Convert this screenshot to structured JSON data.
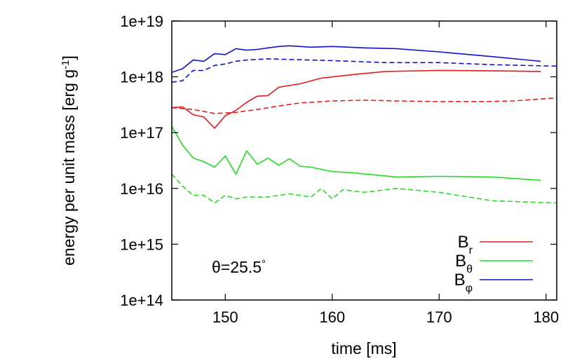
{
  "chart_data": {
    "type": "line",
    "xlabel": "time [ms]",
    "ylabel_main": "energy per unit mass [erg g",
    "ylabel_sup": "-1",
    "ylabel_close": "]",
    "xlim": [
      145,
      181
    ],
    "ylim": [
      100000000000000.0,
      1e+19
    ],
    "y_scale": "log",
    "x_ticks": [
      150,
      160,
      170,
      180
    ],
    "x_tick_labels": [
      "150",
      "160",
      "170",
      "180"
    ],
    "y_ticks": [
      100000000000000.0,
      1000000000000000.0,
      1e+16,
      1e+17,
      1e+18,
      1e+19
    ],
    "y_tick_labels": [
      "1e+14",
      "1e+15",
      "1e+16",
      "1e+17",
      "1e+18",
      "1e+19"
    ],
    "annotation": {
      "prefix": "θ",
      "text": "=25.5",
      "suffix": "°"
    },
    "legend_position": "bottom-right",
    "series": [
      {
        "base": "B",
        "sub": "r",
        "color": "#e41a1c",
        "style": "solid",
        "x": [
          145,
          146,
          147,
          148,
          149,
          150,
          151,
          152,
          153,
          154,
          155,
          157,
          159,
          162,
          165,
          170,
          175,
          179.5
        ],
        "y": [
          2.8e+17,
          2.9e+17,
          2.1e+17,
          1.9e+17,
          1.2e+17,
          2e+17,
          2.5e+17,
          3.5e+17,
          4.5e+17,
          4.6e+17,
          6.5e+17,
          7.5e+17,
          9.5e+17,
          1.1e+18,
          1.25e+18,
          1.3e+18,
          1.28e+18,
          1.25e+18
        ]
      },
      {
        "style": "dashed",
        "color": "#e41a1c",
        "x": [
          145,
          147,
          149,
          151,
          153,
          155,
          157,
          160,
          163,
          166,
          170,
          174,
          177,
          179.5,
          181
        ],
        "y": [
          2.8e+17,
          2.6e+17,
          2.2e+17,
          2.3e+17,
          2.6e+17,
          3e+17,
          3.4e+17,
          3.7e+17,
          3.8e+17,
          3.7e+17,
          3.6e+17,
          3.6e+17,
          3.7e+17,
          4e+17,
          4.2e+17
        ]
      },
      {
        "base": "B",
        "sub": "θ",
        "color": "#22dd22",
        "style": "solid",
        "x": [
          145,
          146,
          147,
          148,
          149,
          150,
          151,
          152,
          153,
          154,
          155,
          156,
          157,
          158,
          160,
          162,
          166,
          170,
          175,
          179.5
        ],
        "y": [
          1.3e+17,
          6e+16,
          3.5e+16,
          3e+16,
          2.4e+16,
          3.8e+16,
          1.8e+16,
          4.7e+16,
          2.7e+16,
          3.5e+16,
          2.6e+16,
          3.4e+16,
          2.5e+16,
          2.4e+16,
          2e+16,
          1.9e+16,
          1.6e+16,
          1.65e+16,
          1.6e+16,
          1.4e+16
        ]
      },
      {
        "style": "dashed",
        "color": "#22dd22",
        "x": [
          145,
          146,
          147,
          148,
          149,
          150,
          151,
          152,
          154,
          156,
          158,
          159,
          160,
          161,
          163,
          166,
          170,
          175,
          181
        ],
        "y": [
          1.8e+16,
          1.1e+16,
          7500000000000000.0,
          7500000000000000.0,
          5500000000000000.0,
          7500000000000000.0,
          6500000000000000.0,
          7000000000000000.0,
          7000000000000000.0,
          8000000000000000.0,
          7000000000000000.0,
          1e+16,
          6500000000000000.0,
          9500000000000000.0,
          8500000000000000.0,
          1e+16,
          8500000000000000.0,
          6000000000000000.0,
          5500000000000000.0
        ]
      },
      {
        "base": "B",
        "sub": "φ",
        "color": "#1010cc",
        "style": "solid",
        "x": [
          145,
          146,
          147,
          148,
          149,
          150,
          151,
          152,
          153,
          154,
          155,
          156,
          158,
          160,
          163,
          166,
          170,
          175,
          179.5
        ],
        "y": [
          1.2e+18,
          1.4e+18,
          2e+18,
          1.9e+18,
          2.6e+18,
          2.5e+18,
          3.2e+18,
          3e+18,
          3.1e+18,
          3.3e+18,
          3.5e+18,
          3.6e+18,
          3.4e+18,
          3.5e+18,
          3.3e+18,
          3.2e+18,
          2.8e+18,
          2.3e+18,
          1.9e+18
        ]
      },
      {
        "style": "dashed",
        "color": "#1010cc",
        "x": [
          145,
          146,
          147,
          148,
          149,
          150,
          151,
          152,
          154,
          156,
          160,
          165,
          170,
          175,
          181
        ],
        "y": [
          8e+17,
          8.5e+17,
          1.3e+18,
          1.3e+18,
          1.6e+18,
          1.7e+18,
          1.9e+18,
          2e+18,
          2.1e+18,
          2.05e+18,
          1.95e+18,
          1.8e+18,
          1.8e+18,
          1.65e+18,
          1.55e+18
        ]
      }
    ]
  }
}
